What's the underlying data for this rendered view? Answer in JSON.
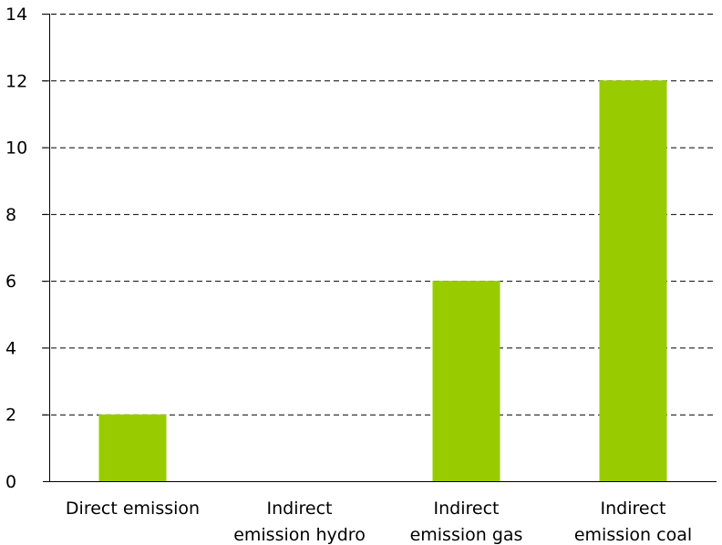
{
  "chart_data": {
    "type": "bar",
    "title": "",
    "xlabel": "",
    "ylabel": "",
    "categories": [
      [
        "Direct emission"
      ],
      [
        "Indirect",
        "emission hydro"
      ],
      [
        "Indirect",
        "emission gas"
      ],
      [
        "Indirect",
        "emission coal"
      ]
    ],
    "values": [
      2,
      0,
      6,
      12
    ],
    "ylim": [
      0,
      14
    ],
    "yticks": [
      "0",
      "2",
      "4",
      "6",
      "8",
      "10",
      "12",
      "14"
    ],
    "grid": true,
    "legend": "none",
    "bar_color": "#99CC00"
  }
}
